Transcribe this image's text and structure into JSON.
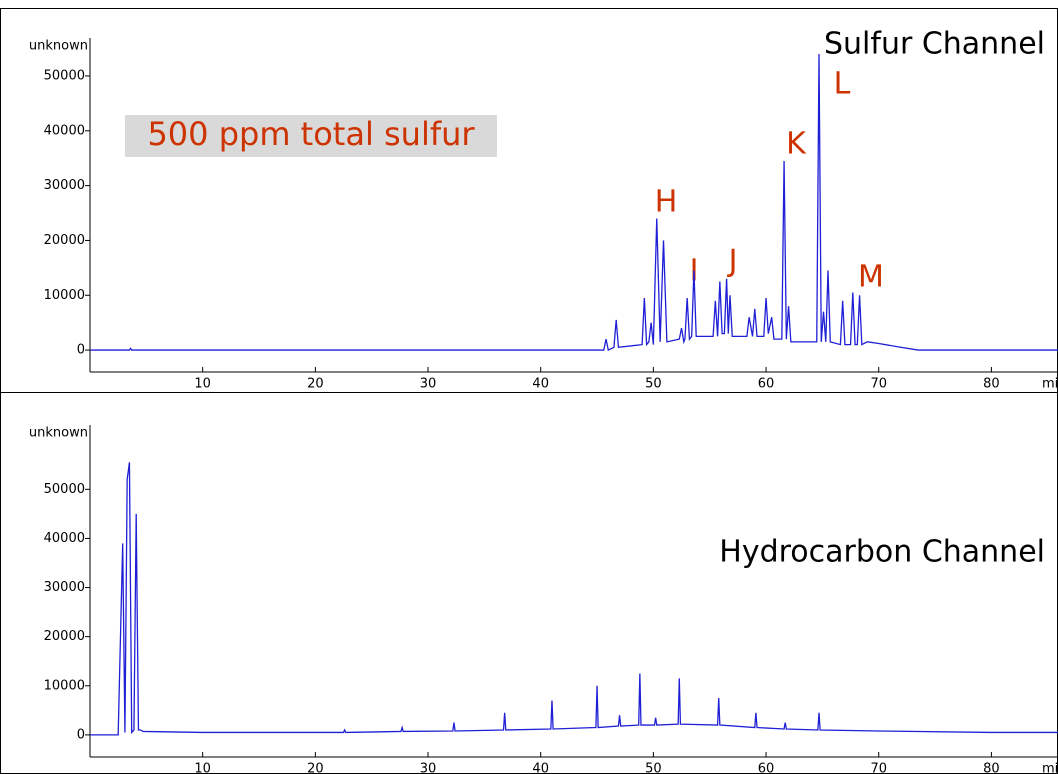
{
  "chart_data": [
    {
      "type": "line",
      "title": "Sulfur Channel",
      "y_label": "unknown",
      "x_label": "min",
      "color": "#1f1fd6",
      "annotations": [
        "500 ppm total sulfur",
        "H",
        "I",
        "J",
        "K",
        "L",
        "M"
      ],
      "xlim": [
        0,
        86
      ],
      "xticks": [
        10,
        20,
        30,
        40,
        50,
        60,
        70,
        80
      ],
      "ylim": [
        -4000,
        62400
      ],
      "yticks": [
        0,
        10000,
        20000,
        30000,
        40000,
        50000
      ],
      "x": [
        0,
        3.5,
        3.6,
        3.7,
        42,
        44.5,
        45.6,
        45.8,
        46.0,
        46.5,
        46.7,
        46.9,
        49.0,
        49.2,
        49.4,
        49.6,
        49.8,
        50.0,
        50.3,
        50.6,
        50.9,
        51.2,
        52.3,
        52.5,
        52.7,
        52.8,
        53.0,
        53.2,
        53.4,
        53.6,
        53.8,
        55.3,
        55.5,
        55.7,
        55.9,
        56.1,
        56.3,
        56.5,
        56.65,
        56.8,
        57.0,
        58.3,
        58.5,
        58.8,
        59.0,
        59.2,
        59.8,
        60.0,
        60.2,
        60.5,
        60.7,
        61.4,
        61.6,
        61.8,
        62.0,
        62.2,
        64.5,
        64.7,
        64.9,
        65.1,
        65.3,
        65.5,
        65.7,
        66.6,
        66.8,
        67.0,
        67.5,
        67.7,
        67.9,
        68.1,
        68.3,
        68.5,
        69.0,
        70.0,
        72.0,
        73.5,
        86
      ],
      "values": [
        0,
        0,
        300,
        0,
        0,
        0,
        0,
        2000,
        0,
        500,
        5500,
        500,
        1000,
        9500,
        1000,
        1500,
        5000,
        1000,
        24000,
        1500,
        20000,
        1500,
        2000,
        4000,
        1500,
        2000,
        9500,
        2000,
        2500,
        14500,
        2500,
        2500,
        9000,
        2500,
        12500,
        3000,
        3000,
        13000,
        3000,
        10000,
        2500,
        2500,
        6000,
        2500,
        7500,
        2500,
        2500,
        9500,
        3000,
        6000,
        2000,
        2000,
        34500,
        2000,
        8000,
        1500,
        1500,
        54000,
        1500,
        7000,
        1500,
        14500,
        1500,
        1000,
        9000,
        1000,
        1000,
        10500,
        1000,
        1000,
        10000,
        1000,
        1500,
        1200,
        500,
        0,
        0
      ]
    },
    {
      "type": "line",
      "title": "Hydrocarbon Channel",
      "y_label": "unknown",
      "x_label": "min",
      "color": "#1f1fd6",
      "xlim": [
        0,
        86
      ],
      "xticks": [
        10,
        20,
        30,
        40,
        50,
        60,
        70,
        80
      ],
      "ylim": [
        -4500,
        69200
      ],
      "yticks": [
        0,
        10000,
        20000,
        30000,
        40000,
        50000
      ],
      "x": [
        0,
        2.5,
        2.9,
        3.1,
        3.3,
        3.5,
        3.7,
        3.9,
        4.1,
        4.3,
        4.5,
        4.7,
        10,
        20,
        22.5,
        22.6,
        22.7,
        27.6,
        27.7,
        27.8,
        32.2,
        32.3,
        32.4,
        36.7,
        36.8,
        36.9,
        40.9,
        41.0,
        41.1,
        44.9,
        45.0,
        45.1,
        46.9,
        47.0,
        47.1,
        48.7,
        48.8,
        48.9,
        50.1,
        50.2,
        50.3,
        52.2,
        52.3,
        52.4,
        55.7,
        55.8,
        55.9,
        59.0,
        59.1,
        59.2,
        61.6,
        61.7,
        61.8,
        64.6,
        64.7,
        64.8,
        70,
        80,
        86
      ],
      "values": [
        0,
        0,
        39000,
        500,
        52000,
        55500,
        500,
        1000,
        45000,
        1000,
        1000,
        700,
        500,
        500,
        500,
        1000,
        500,
        700,
        1500,
        700,
        800,
        2500,
        800,
        1000,
        4500,
        1000,
        1200,
        7000,
        1200,
        1500,
        10000,
        1500,
        1800,
        4000,
        1800,
        2000,
        12500,
        2000,
        2000,
        3500,
        2000,
        2200,
        11500,
        2200,
        2000,
        7500,
        2000,
        1500,
        4500,
        1500,
        1200,
        2500,
        1200,
        1000,
        4500,
        1000,
        800,
        500,
        500
      ]
    }
  ]
}
